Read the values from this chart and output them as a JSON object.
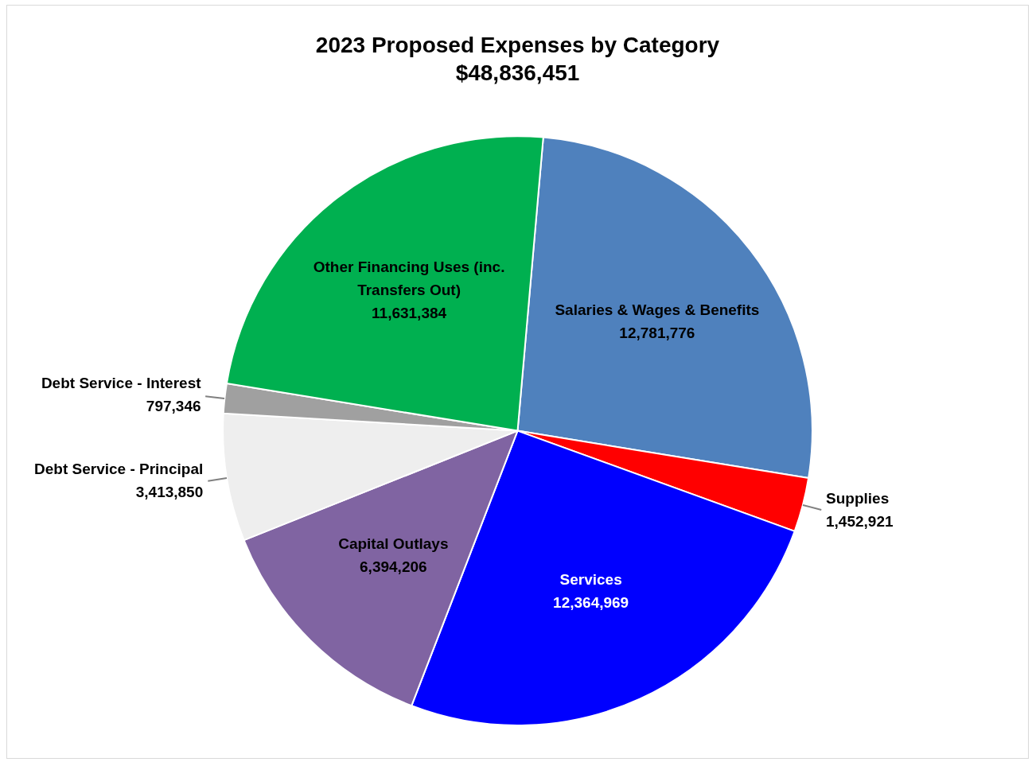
{
  "chart_data": {
    "type": "pie",
    "title": "2023 Proposed Expenses by Category",
    "subtitle": "$48,836,451",
    "categories": [
      "Salaries & Wages & Benefits",
      "Supplies",
      "Services",
      "Capital Outlays",
      "Debt Service - Principal",
      "Debt Service - Interest",
      "Other Financing Uses (inc. Transfers Out)"
    ],
    "values": [
      12781776,
      1452921,
      12364969,
      6394206,
      3413850,
      797346,
      11631384
    ],
    "value_labels": [
      "12,781,776",
      "1,452,921",
      "12,364,969",
      "6,394,206",
      "3,413,850",
      "797,346",
      "11,631,384"
    ],
    "colors": [
      "#4f81bd",
      "#ff0000",
      "#0000ff",
      "#8064a2",
      "#eeeeee",
      "#a0a0a0",
      "#00b050"
    ],
    "legend": false
  }
}
